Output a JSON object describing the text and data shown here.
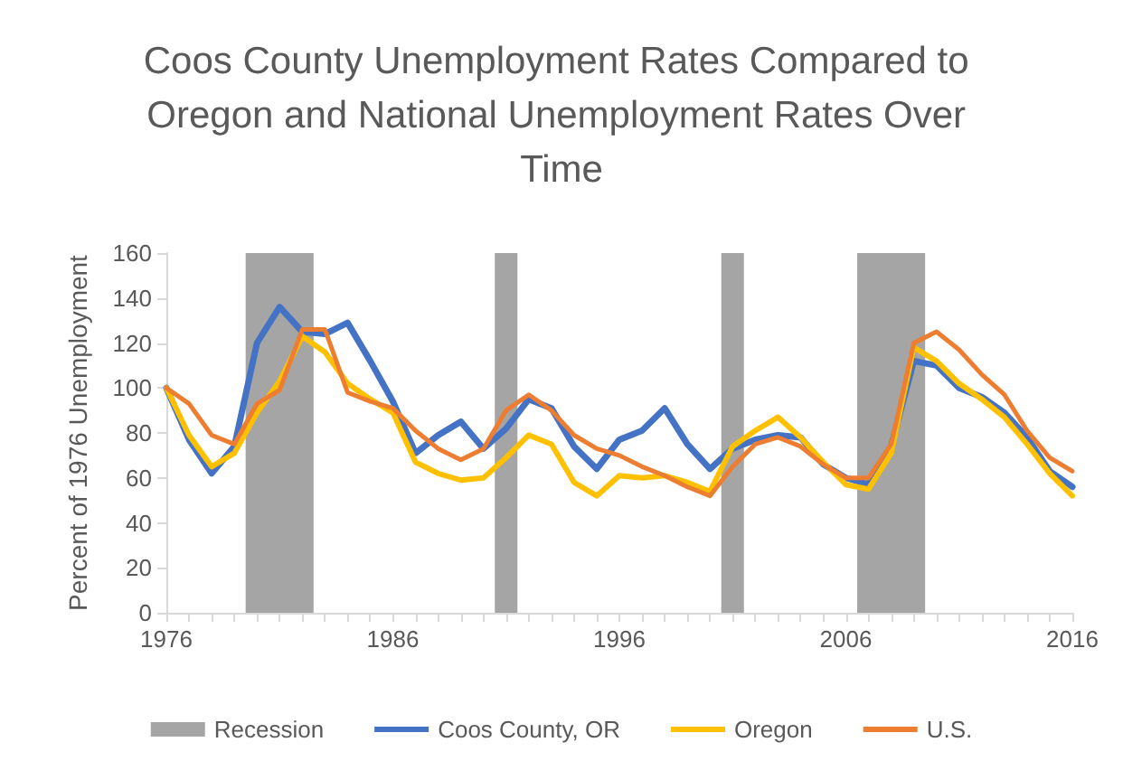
{
  "chart_data": {
    "type": "line",
    "title": "Coos County Unemployment Rates Compared to Oregon and National Unemployment Rates Over Time",
    "ylabel": "Percent of 1976 Unemployment",
    "x": [
      1976,
      1977,
      1978,
      1979,
      1980,
      1981,
      1982,
      1983,
      1984,
      1985,
      1986,
      1987,
      1988,
      1989,
      1990,
      1991,
      1992,
      1993,
      1994,
      1995,
      1996,
      1997,
      1998,
      1999,
      2000,
      2001,
      2002,
      2003,
      2004,
      2005,
      2006,
      2007,
      2008,
      2009,
      2010,
      2011,
      2012,
      2013,
      2014,
      2015,
      2016
    ],
    "series": [
      {
        "name": "Coos County, OR",
        "color": "#4472c4",
        "values": [
          100,
          77,
          62,
          74,
          120,
          136,
          125,
          124,
          129,
          112,
          94,
          71,
          79,
          85,
          73,
          82,
          95,
          91,
          74,
          64,
          77,
          81,
          91,
          75,
          64,
          73,
          77,
          79,
          78,
          66,
          60,
          57,
          74,
          112,
          110,
          100,
          96,
          89,
          78,
          63,
          56
        ]
      },
      {
        "name": "Oregon",
        "color": "#ffc000",
        "values": [
          100,
          79,
          65,
          71,
          89,
          103,
          123,
          116,
          102,
          95,
          89,
          67,
          62,
          59,
          60,
          69,
          79,
          75,
          58,
          52,
          61,
          60,
          61,
          58,
          54,
          74,
          81,
          87,
          78,
          67,
          57,
          55,
          71,
          118,
          112,
          102,
          95,
          87,
          75,
          62,
          52
        ]
      },
      {
        "name": "U.S.",
        "color": "#ed7d31",
        "values": [
          100,
          93,
          79,
          75,
          93,
          99,
          126,
          126,
          98,
          94,
          91,
          81,
          73,
          68,
          73,
          90,
          97,
          90,
          79,
          73,
          70,
          65,
          61,
          56,
          52,
          65,
          75,
          78,
          74,
          66,
          60,
          60,
          75,
          120,
          125,
          117,
          106,
          97,
          81,
          69,
          63
        ]
      }
    ],
    "bands": [
      {
        "axis": "x",
        "from": 1979.5,
        "to": 1982.5,
        "label": "Recession",
        "color": "#a5a5a5"
      },
      {
        "axis": "x",
        "from": 1990.5,
        "to": 1991.5,
        "color": "#a5a5a5"
      },
      {
        "axis": "x",
        "from": 2000.5,
        "to": 2001.5,
        "color": "#a5a5a5"
      },
      {
        "axis": "x",
        "from": 2006.5,
        "to": 2009.5,
        "color": "#a5a5a5"
      }
    ],
    "xlim": [
      1976,
      2016
    ],
    "xticks": [
      1976,
      1986,
      1996,
      2006,
      2016
    ],
    "ylim": [
      0,
      160
    ],
    "yticks": [
      0,
      20,
      40,
      60,
      80,
      100,
      120,
      140,
      160
    ],
    "grid": false,
    "legend": "bottom",
    "marker": "none",
    "line_style": "solid"
  }
}
